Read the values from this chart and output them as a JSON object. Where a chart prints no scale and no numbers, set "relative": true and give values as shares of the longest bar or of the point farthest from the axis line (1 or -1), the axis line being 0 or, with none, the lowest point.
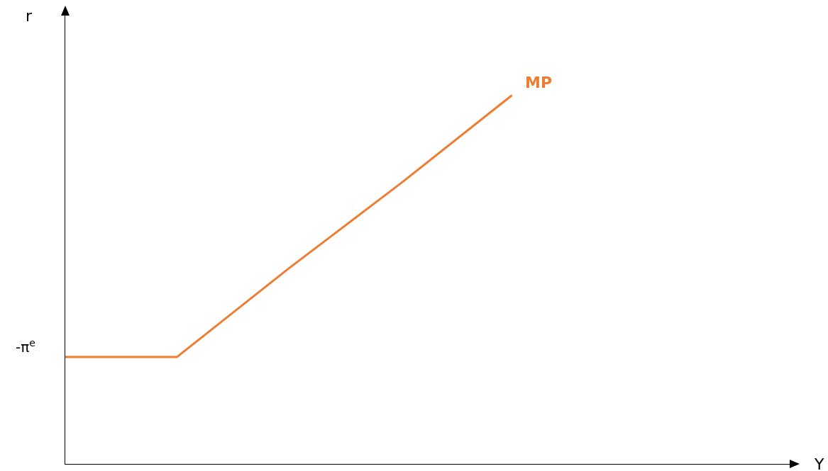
{
  "chart_data": {
    "type": "line",
    "relative": true,
    "xlabel": "Y",
    "ylabel": "r",
    "categories": [
      null,
      null,
      null,
      null,
      null,
      null,
      null
    ],
    "series": [
      {
        "name": "MP",
        "color": "#ed7d31",
        "values": [
          0.29,
          0.29,
          0.53,
          0.76,
          1,
          null,
          null
        ]
      }
    ],
    "annotations": [
      "-π$^{e}$"
    ]
  }
}
